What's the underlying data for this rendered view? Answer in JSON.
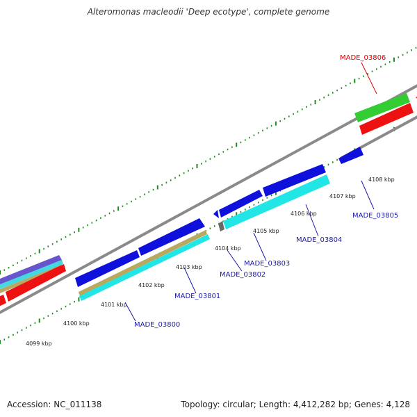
{
  "title": "Alteromonas macleodii 'Deep ecotype', complete genome",
  "footer": {
    "accession": "Accession: NC_011138",
    "summary": "Topology: circular; Length: 4,412,282 bp; Genes: 4,128"
  },
  "colors": {
    "backbone": "#8a8a8a",
    "tick_dots": "#228b22",
    "label_blue": "#1a1aa8",
    "label_red": "#dd0000",
    "gene_blue": "#1010dd",
    "gene_cyan": "#22e6e6",
    "gene_red": "#ee1111",
    "gene_green": "#33cc33",
    "gene_olive": "#b8a860",
    "gene_gray": "#6a6a6a"
  },
  "scale": {
    "ticks": [
      {
        "label": "4099 kbp"
      },
      {
        "label": "4100 kbp"
      },
      {
        "label": "4101 kbp"
      },
      {
        "label": "4102 kbp"
      },
      {
        "label": "4103 kbp"
      },
      {
        "label": "4104 kbp"
      },
      {
        "label": "4105 kbp"
      },
      {
        "label": "4106 kbp"
      },
      {
        "label": "4107 kbp"
      },
      {
        "label": "4108 kbp"
      }
    ]
  },
  "gene_labels": [
    {
      "text": "MADE_03800",
      "color": "label_blue"
    },
    {
      "text": "MADE_03801",
      "color": "label_blue"
    },
    {
      "text": "MADE_03802",
      "color": "label_blue"
    },
    {
      "text": "MADE_03803",
      "color": "label_blue"
    },
    {
      "text": "MADE_03804",
      "color": "label_blue"
    },
    {
      "text": "MADE_03805",
      "color": "label_blue"
    },
    {
      "text": "MADE_03806",
      "color": "label_red"
    }
  ]
}
